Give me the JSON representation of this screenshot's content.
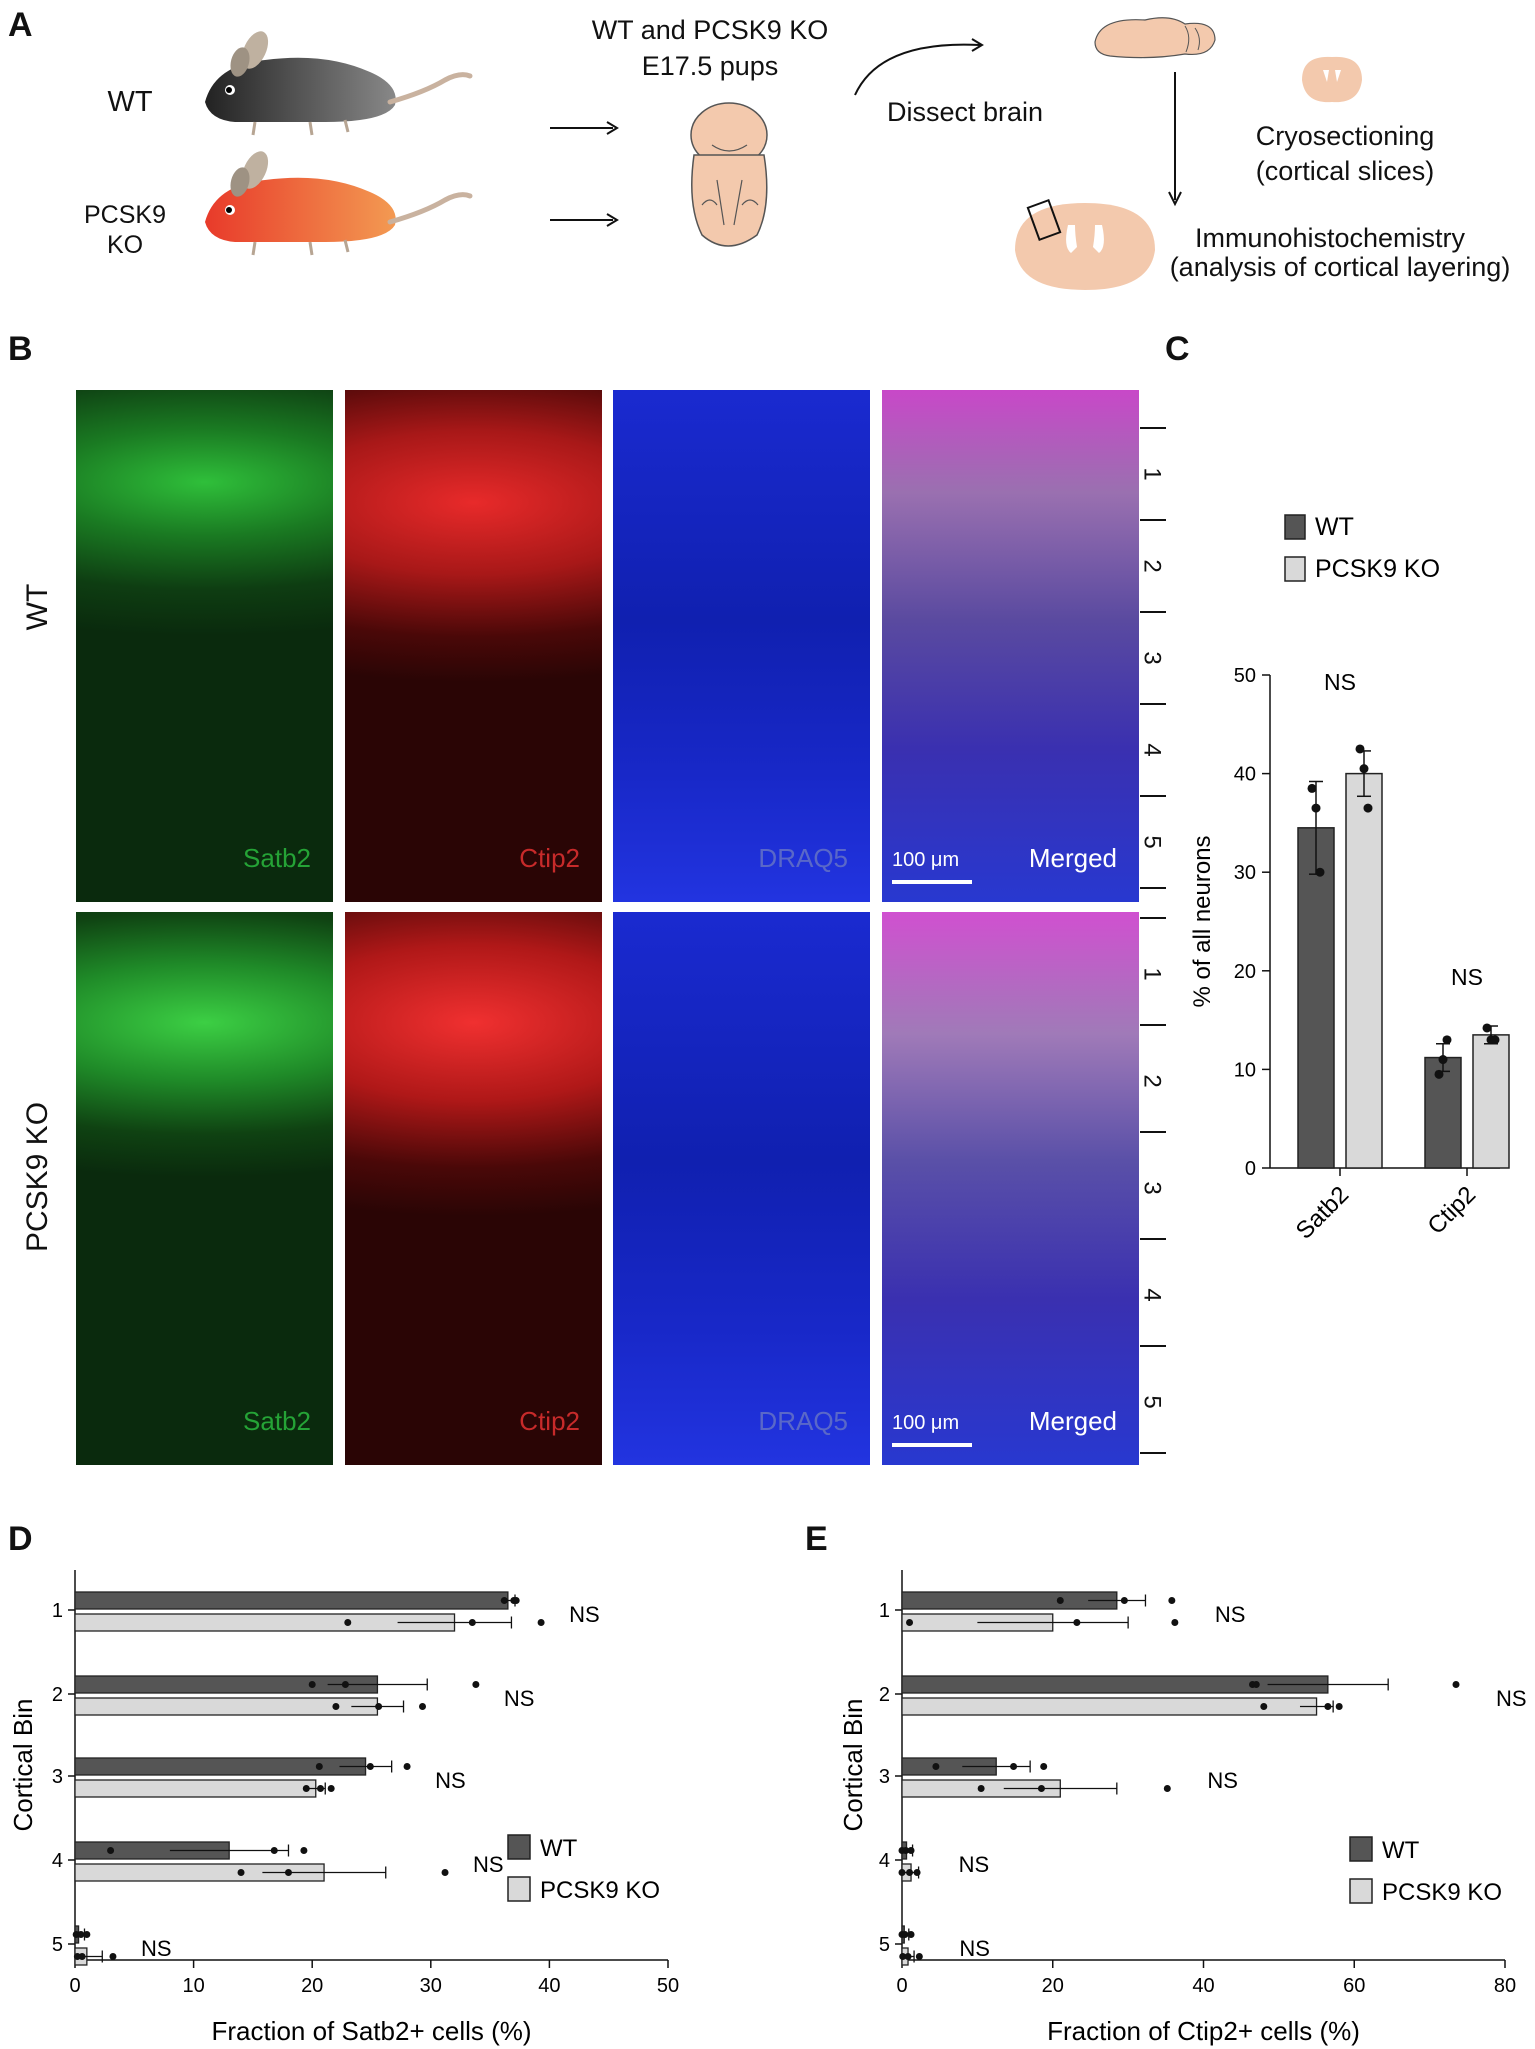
{
  "panel_letters": {
    "a": "A",
    "b": "B",
    "c": "C",
    "d": "D",
    "e": "E"
  },
  "panel_a": {
    "wt_label": "WT",
    "ko_label_line1": "PCSK9",
    "ko_label_line2": "KO",
    "pups_line1": "WT and PCSK9 KO",
    "pups_line2": "E17.5 pups",
    "dissect": "Dissect brain",
    "cryo_line1": "Cryosectioning",
    "cryo_line2": "(cortical slices)",
    "ihc_line1": "Immunohistochemistry",
    "ihc_line2": "(analysis of cortical layering)",
    "colors": {
      "wt_mouse": "#444444",
      "ko_mouse": "#e8542a",
      "tissue": "#f3c9ad"
    }
  },
  "panel_b": {
    "row_labels": [
      "WT",
      "PCSK9 KO"
    ],
    "channels": [
      "Satb2",
      "Ctip2",
      "DRAQ5",
      "Merged"
    ],
    "scale_bar": "100 μm",
    "layers": [
      "1",
      "2",
      "3",
      "4",
      "5"
    ],
    "colors": {
      "satb2": "#1f9a2e",
      "ctip2": "#d42424",
      "draq5": "#2c3ad6"
    }
  },
  "chart_data": [
    {
      "panel": "C",
      "type": "bar",
      "categories": [
        "Satb2",
        "Ctip2"
      ],
      "series": [
        {
          "name": "WT",
          "color": "#555555",
          "values": [
            34.5,
            11.2
          ],
          "error": [
            4.7,
            1.4
          ],
          "points": [
            [
              38.5,
              36.5,
              30.0
            ],
            [
              9.5,
              11.0,
              13.0
            ]
          ]
        },
        {
          "name": "PCSK9 KO",
          "color": "#d9d9d9",
          "values": [
            40.0,
            13.5
          ],
          "error": [
            2.3,
            0.9
          ],
          "points": [
            [
              42.5,
              40.5,
              36.5
            ],
            [
              14.2,
              13.0,
              13.0
            ]
          ]
        }
      ],
      "annotations": [
        "NS",
        "NS"
      ],
      "ylabel": "% of all neurons",
      "ylim": [
        0,
        50
      ],
      "yticks": [
        0,
        10,
        20,
        30,
        40,
        50
      ]
    },
    {
      "panel": "D",
      "type": "bar",
      "orientation": "horizontal",
      "categories": [
        "1",
        "2",
        "3",
        "4",
        "5"
      ],
      "series": [
        {
          "name": "WT",
          "color": "#555555",
          "values": [
            36.5,
            25.5,
            24.5,
            13.0,
            0.3
          ],
          "error": [
            0.6,
            4.2,
            2.2,
            5.0,
            0.5
          ],
          "points": [
            [
              36.2,
              37.0,
              37.2
            ],
            [
              20.0,
              22.8,
              33.8
            ],
            [
              20.6,
              24.9,
              28.0
            ],
            [
              3.0,
              16.8,
              19.3
            ],
            [
              0.1,
              0.5,
              1.0
            ]
          ]
        },
        {
          "name": "PCSK9 KO",
          "color": "#d9d9d9",
          "values": [
            32.0,
            25.5,
            20.3,
            21.0,
            1.0
          ],
          "error": [
            4.8,
            2.2,
            0.8,
            5.2,
            1.3
          ],
          "points": [
            [
              23.0,
              33.5,
              39.3
            ],
            [
              22.0,
              25.6,
              29.3
            ],
            [
              19.5,
              20.7,
              21.6
            ],
            [
              14.0,
              18.0,
              31.2
            ],
            [
              0.2,
              0.6,
              3.2
            ]
          ]
        }
      ],
      "annotations": [
        "NS",
        "NS",
        "NS",
        "NS",
        "NS"
      ],
      "xlabel": "Fraction of Satb2+ cells (%)",
      "ylabel": "Cortical Bin",
      "xlim": [
        0,
        50
      ],
      "xticks": [
        0,
        10,
        20,
        30,
        40,
        50
      ]
    },
    {
      "panel": "E",
      "type": "bar",
      "orientation": "horizontal",
      "categories": [
        "1",
        "2",
        "3",
        "4",
        "5"
      ],
      "series": [
        {
          "name": "WT",
          "color": "#555555",
          "values": [
            28.5,
            56.5,
            12.5,
            0.6,
            0.3
          ],
          "error": [
            3.8,
            8.0,
            4.5,
            0.8,
            0.6
          ],
          "points": [
            [
              21.0,
              29.5,
              35.8
            ],
            [
              46.5,
              47.0,
              73.5
            ],
            [
              4.5,
              14.8,
              18.8
            ],
            [
              0.0,
              0.5,
              1.2
            ],
            [
              0.0,
              0.4,
              1.2
            ]
          ]
        },
        {
          "name": "PCSK9 KO",
          "color": "#d9d9d9",
          "values": [
            20.0,
            55.0,
            21.0,
            1.2,
            0.8
          ],
          "error": [
            10.0,
            2.2,
            7.5,
            1.0,
            0.8
          ],
          "points": [
            [
              1.0,
              23.2,
              36.2
            ],
            [
              48.0,
              56.5,
              58.0
            ],
            [
              10.5,
              18.5,
              35.2
            ],
            [
              0.0,
              1.0,
              2.0
            ],
            [
              0.1,
              0.8,
              2.3
            ]
          ]
        }
      ],
      "annotations": [
        "NS",
        "NS",
        "NS",
        "NS",
        "NS"
      ],
      "xlabel": "Fraction of Ctip2+ cells (%)",
      "ylabel": "Cortical Bin",
      "xlim": [
        0,
        80
      ],
      "xticks": [
        0,
        20,
        40,
        60,
        80
      ]
    }
  ]
}
